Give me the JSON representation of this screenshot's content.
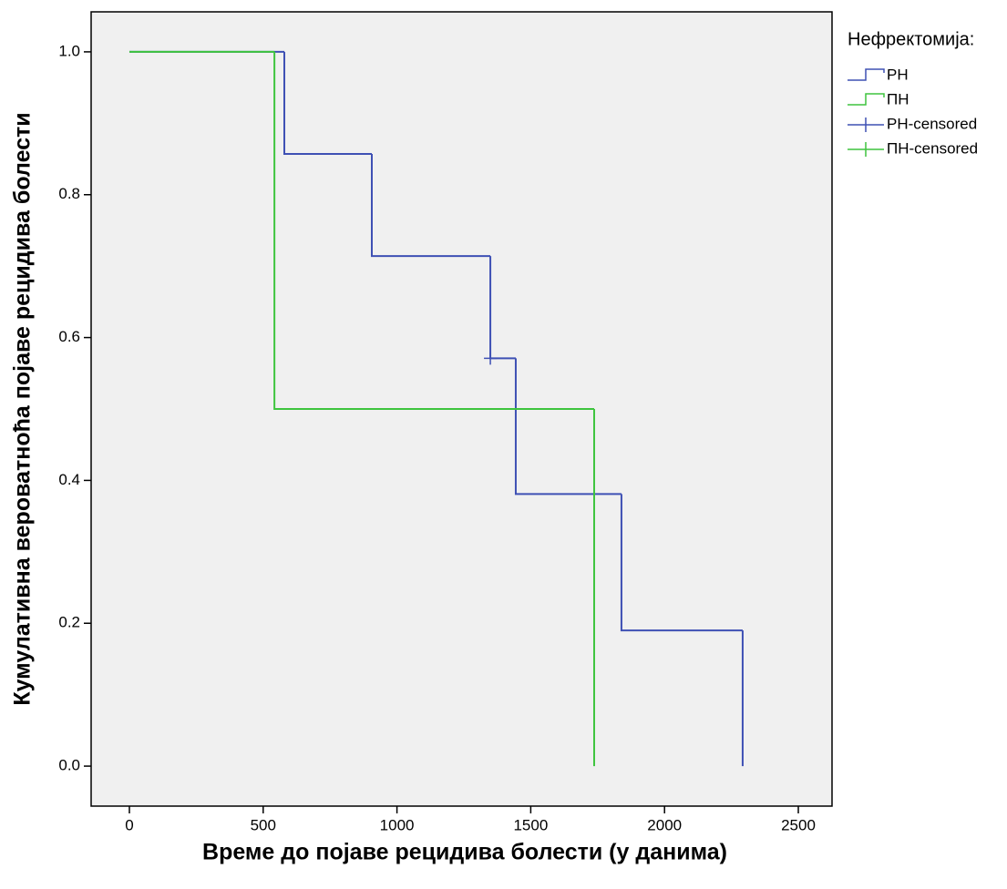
{
  "chart_data": {
    "type": "step",
    "x_label": "Време до појаве рецидива болести (у данима)",
    "y_label": "Кумулативна вероватноћа појаве рецидива болести",
    "legend_title": "Нефректомија:",
    "legend": "top-right-outside",
    "xlim": [
      -143,
      2626
    ],
    "ylim": [
      -0.056,
      1.056
    ],
    "xticks": [
      0,
      500,
      1000,
      1500,
      2000,
      2500
    ],
    "yticks": [
      {
        "value": 0,
        "label": "0.0"
      },
      {
        "value": 0.2,
        "label": "0.2"
      },
      {
        "value": 0.4,
        "label": "0.4"
      },
      {
        "value": 0.6,
        "label": "0.6"
      },
      {
        "value": 0.8,
        "label": "0.8"
      },
      {
        "value": 1,
        "label": "1.0"
      }
    ],
    "series": [
      {
        "name": "РН",
        "kind": "step",
        "color": "#3e50b4",
        "x": [
          0,
          579,
          906,
          1349,
          1444,
          1839,
          2292
        ],
        "values": [
          1.0,
          0.857,
          0.714,
          0.571,
          0.381,
          0.19,
          0
        ]
      },
      {
        "name": "ПН",
        "kind": "step",
        "color": "#3ec43e",
        "x": [
          0,
          542,
          1737
        ],
        "values": [
          1.0,
          0.5,
          0
        ]
      },
      {
        "name": "РН-censored",
        "kind": "censored",
        "color": "#3e50b4",
        "x": [
          1349
        ],
        "values": [
          0.571
        ]
      },
      {
        "name": "ПН-censored",
        "kind": "censored",
        "color": "#3ec43e",
        "x": [],
        "values": []
      }
    ]
  }
}
